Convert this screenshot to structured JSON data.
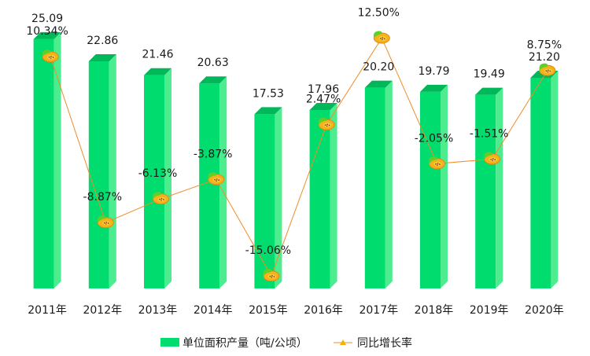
{
  "chart_data": {
    "type": "bar",
    "categories": [
      "2011年",
      "2012年",
      "2013年",
      "2014年",
      "2015年",
      "2016年",
      "2017年",
      "2018年",
      "2019年",
      "2020年"
    ],
    "series": [
      {
        "name": "单位面积产量（吨/公顷）",
        "type": "bar",
        "axis": "left",
        "values": [
          25.09,
          22.86,
          21.46,
          20.63,
          17.53,
          17.96,
          20.2,
          19.79,
          19.49,
          21.2
        ],
        "labels": [
          "25.09",
          "22.86",
          "21.46",
          "20.63",
          "17.53",
          "17.96",
          "20.20",
          "19.79",
          "19.49",
          "21.20"
        ],
        "color": "#00dc6e"
      },
      {
        "name": "同比增长率",
        "type": "line",
        "axis": "right",
        "values": [
          10.34,
          -8.87,
          -6.13,
          -3.87,
          -15.06,
          2.47,
          12.5,
          -2.05,
          -1.51,
          8.75
        ],
        "labels": [
          "10.34%",
          "-8.87%",
          "-6.13%",
          "-3.87%",
          "-15.06%",
          "2.47%",
          "12.50%",
          "-2.05%",
          "-1.51%",
          "8.75%"
        ],
        "color": "#f08c28",
        "marker": "papaya-icon"
      }
    ],
    "ylim_left": [
      0,
      26.5
    ],
    "ylim_right": [
      -16.5,
      14
    ],
    "grid": false,
    "legend_position": "bottom-center",
    "axes_visible": false
  }
}
